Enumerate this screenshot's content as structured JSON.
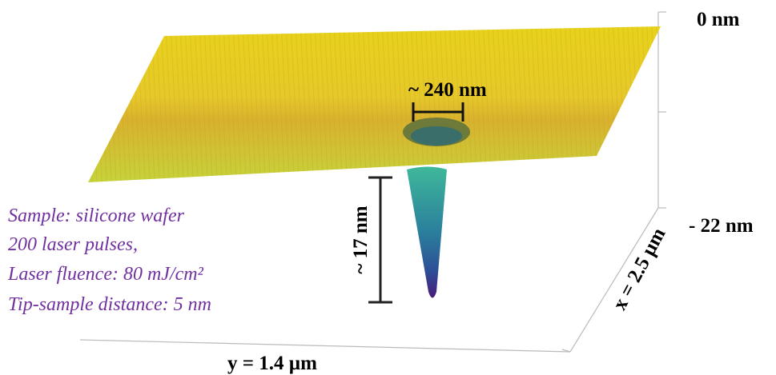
{
  "axes": {
    "z_top": "0 nm",
    "z_bottom": "- 22 nm",
    "y_axis": "y = 1.4 µm",
    "x_axis": "x = 2.5 µm"
  },
  "scale_bars": {
    "width": "~ 240 nm",
    "depth": "~ 17 nm"
  },
  "annotation": {
    "lines": [
      "Sample: silicone wafer",
      "200 laser pulses,",
      "Laser fluence: 80 mJ/cm²",
      "Tip-sample distance: 5 nm"
    ]
  }
}
